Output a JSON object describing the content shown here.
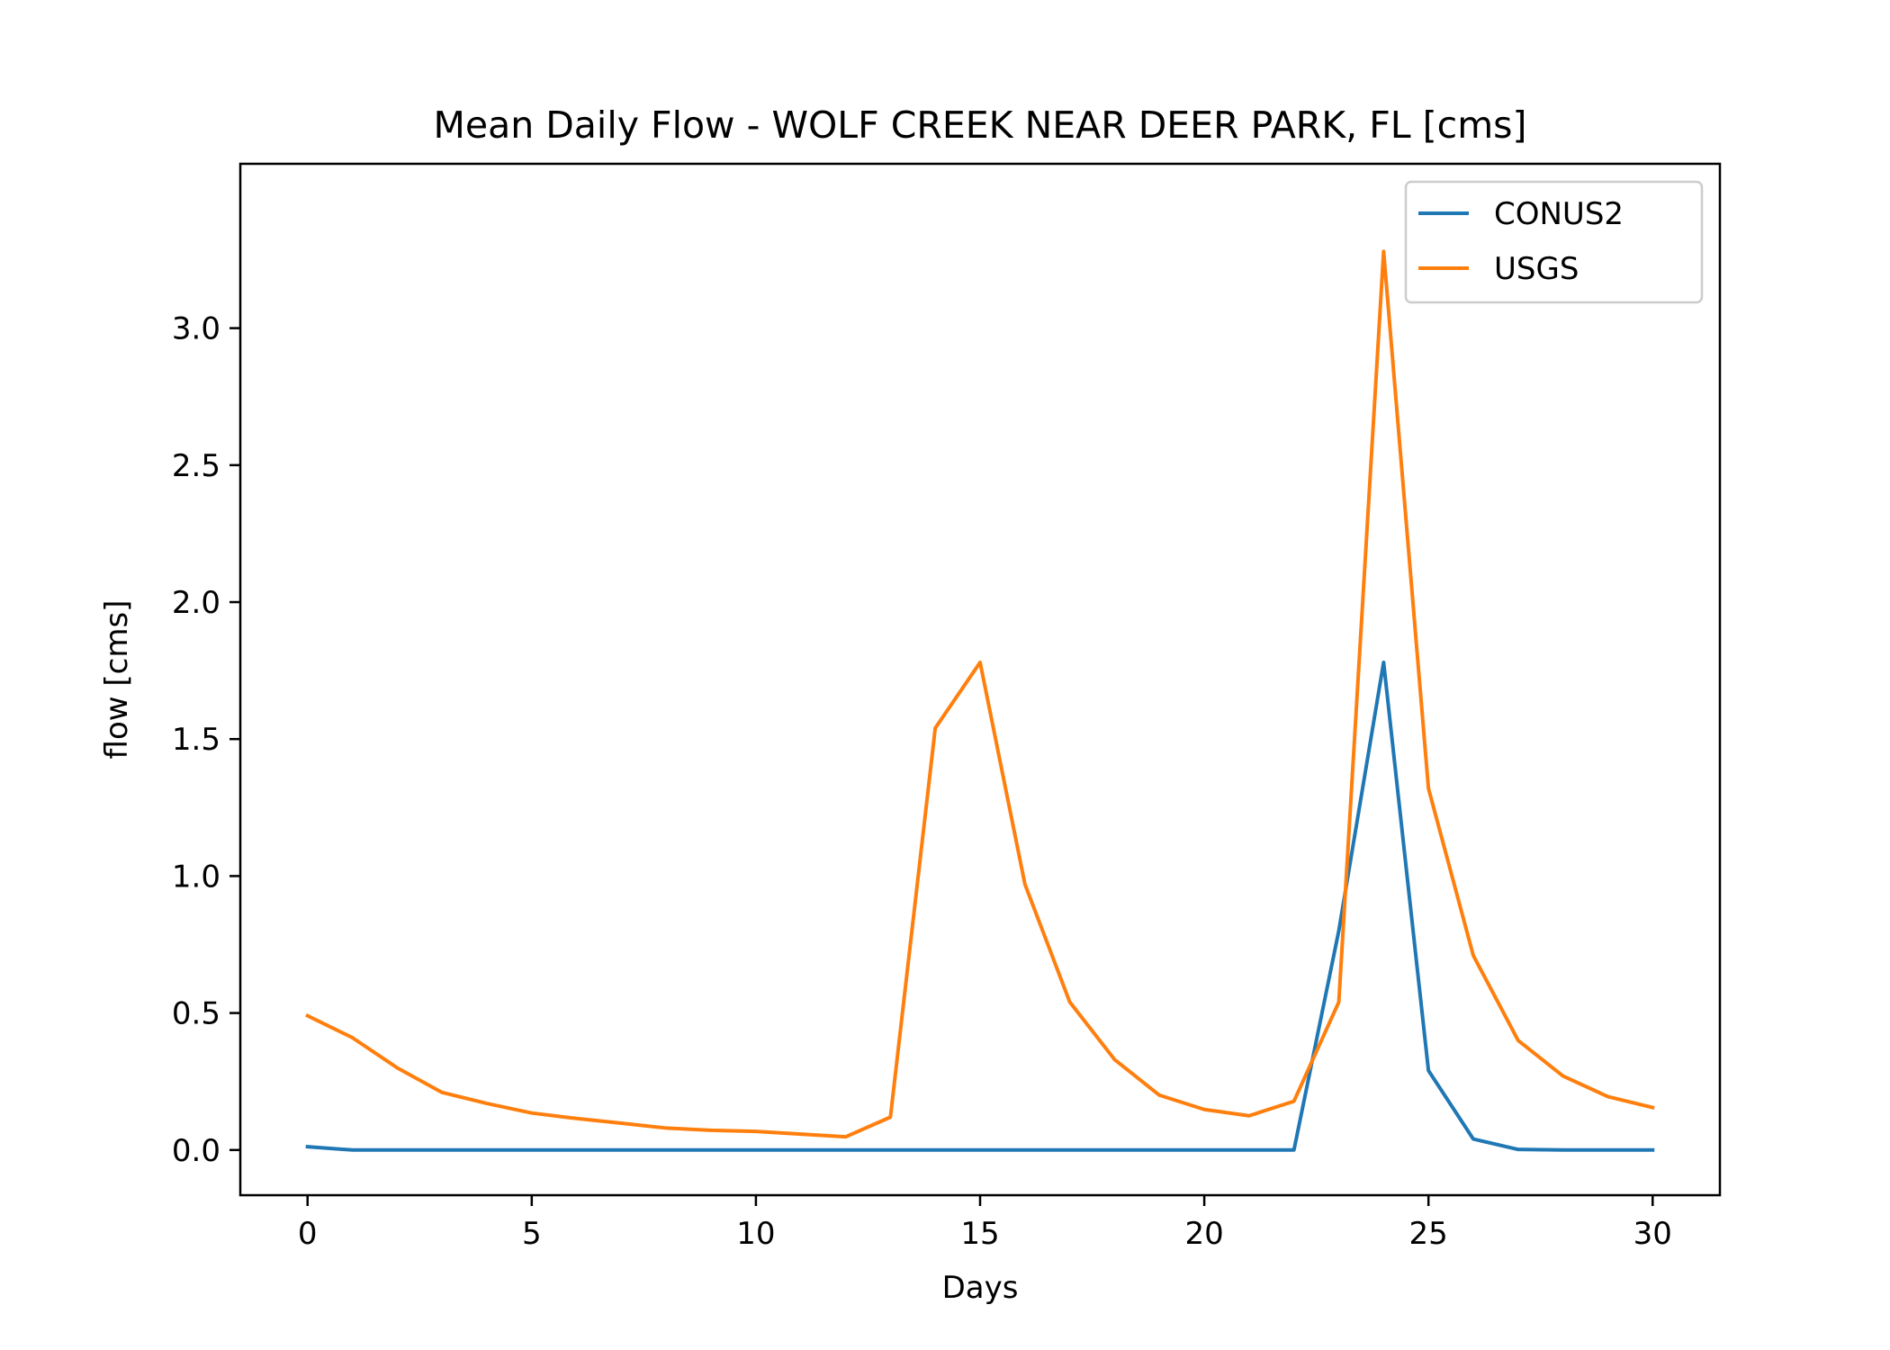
{
  "chart_data": {
    "type": "line",
    "title": "Mean Daily Flow - WOLF CREEK NEAR DEER PARK, FL [cms]",
    "xlabel": "Days",
    "ylabel": "flow [cms]",
    "xlim": [
      -1.5,
      31.5
    ],
    "ylim": [
      -0.165,
      3.6
    ],
    "xticks": [
      0,
      5,
      10,
      15,
      20,
      25,
      30
    ],
    "xtick_labels": [
      "0",
      "5",
      "10",
      "15",
      "20",
      "25",
      "30"
    ],
    "yticks": [
      0.0,
      0.5,
      1.0,
      1.5,
      2.0,
      2.5,
      3.0
    ],
    "ytick_labels": [
      "0.0",
      "0.5",
      "1.0",
      "1.5",
      "2.0",
      "2.5",
      "3.0"
    ],
    "grid": false,
    "legend": "top-right",
    "x": [
      0,
      1,
      2,
      3,
      4,
      5,
      6,
      7,
      8,
      9,
      10,
      11,
      12,
      13,
      14,
      15,
      16,
      17,
      18,
      19,
      20,
      21,
      22,
      23,
      24,
      25,
      26,
      27,
      28,
      29,
      30
    ],
    "series": [
      {
        "name": "CONUS2",
        "color": "#1f77b4",
        "values": [
          0.012,
          0.0,
          0.0,
          0.0,
          0.0,
          0.0,
          0.0,
          0.0,
          0.0,
          0.0,
          0.0,
          0.0,
          0.0,
          0.0,
          0.0,
          0.0,
          0.0,
          0.0,
          0.0,
          0.0,
          0.0,
          0.0,
          0.0,
          0.8,
          1.78,
          0.29,
          0.04,
          0.002,
          0.0,
          0.0,
          0.0
        ]
      },
      {
        "name": "USGS",
        "color": "#ff7f0e",
        "values": [
          0.49,
          0.41,
          0.3,
          0.21,
          0.17,
          0.135,
          0.115,
          0.098,
          0.08,
          0.072,
          0.068,
          0.058,
          0.048,
          0.12,
          1.54,
          1.78,
          0.97,
          0.54,
          0.33,
          0.2,
          0.148,
          0.125,
          0.178,
          0.54,
          3.28,
          1.32,
          0.71,
          0.4,
          0.27,
          0.195,
          0.155
        ]
      }
    ]
  }
}
